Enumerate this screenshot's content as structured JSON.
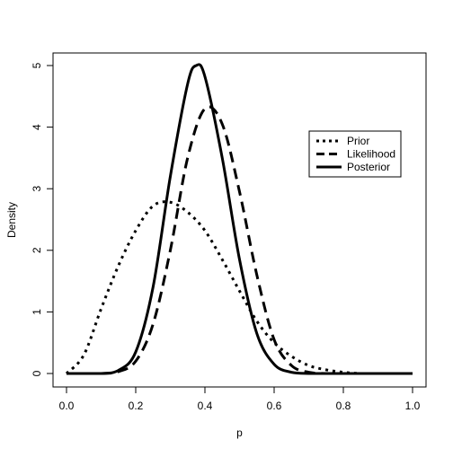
{
  "chart_data": {
    "type": "line",
    "title": "",
    "xlabel": "p",
    "ylabel": "Density",
    "xlim": [
      0,
      1
    ],
    "ylim": [
      0,
      5
    ],
    "x_ticks": [
      0.0,
      0.2,
      0.4,
      0.6,
      0.8,
      1.0
    ],
    "x_tick_labels": [
      "0.0",
      "0.2",
      "0.4",
      "0.6",
      "0.8",
      "1.0"
    ],
    "y_ticks": [
      0,
      1,
      2,
      3,
      4,
      5
    ],
    "y_tick_labels": [
      "0",
      "1",
      "2",
      "3",
      "4",
      "5"
    ],
    "grid": false,
    "legend_position": "right",
    "series": [
      {
        "name": "Prior",
        "style": "dotted",
        "color": "#000000",
        "x": [
          0.0,
          0.05,
          0.1,
          0.15,
          0.2,
          0.25,
          0.3,
          0.35,
          0.4,
          0.45,
          0.5,
          0.55,
          0.6,
          0.65,
          0.7,
          0.75,
          0.8,
          0.85,
          0.9,
          0.95,
          1.0
        ],
        "values": [
          0.0,
          0.3,
          1.05,
          1.75,
          2.32,
          2.72,
          2.78,
          2.62,
          2.32,
          1.85,
          1.34,
          0.85,
          0.5,
          0.28,
          0.13,
          0.06,
          0.02,
          0.0,
          0.0,
          0.0,
          0.0
        ]
      },
      {
        "name": "Likelihood",
        "style": "dashed",
        "color": "#000000",
        "x": [
          0.0,
          0.1,
          0.15,
          0.2,
          0.25,
          0.3,
          0.35,
          0.4,
          0.45,
          0.5,
          0.55,
          0.6,
          0.65,
          0.7,
          0.75,
          0.8,
          0.9,
          1.0
        ],
        "values": [
          0.0,
          0.0,
          0.03,
          0.2,
          0.8,
          2.0,
          3.5,
          4.3,
          4.05,
          2.95,
          1.6,
          0.55,
          0.13,
          0.02,
          0.0,
          0.0,
          0.0,
          0.0
        ]
      },
      {
        "name": "Posterior",
        "style": "solid",
        "color": "#000000",
        "x": [
          0.0,
          0.1,
          0.15,
          0.2,
          0.25,
          0.3,
          0.35,
          0.375,
          0.4,
          0.45,
          0.5,
          0.55,
          0.6,
          0.65,
          0.7,
          0.8,
          0.9,
          1.0
        ],
        "values": [
          0.0,
          0.0,
          0.05,
          0.35,
          1.4,
          3.2,
          4.7,
          5.0,
          4.82,
          3.5,
          1.85,
          0.65,
          0.15,
          0.02,
          0.0,
          0.0,
          0.0,
          0.0
        ]
      }
    ]
  }
}
